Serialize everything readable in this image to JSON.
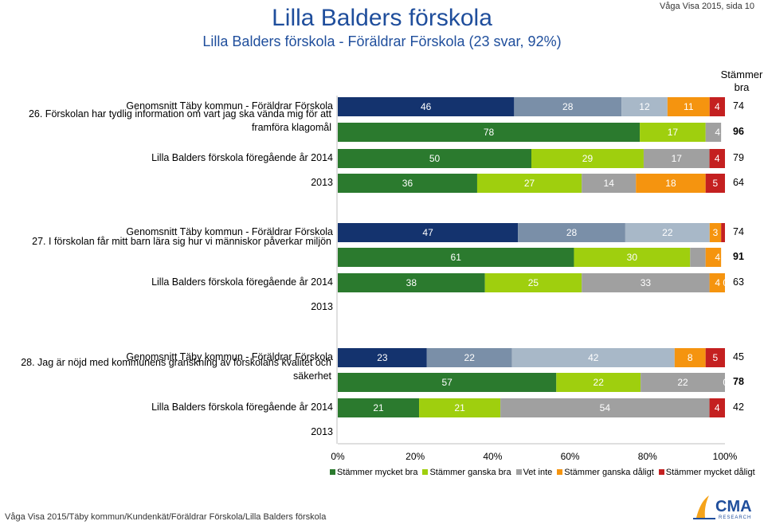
{
  "header": {
    "title": "Lilla Balders förskola",
    "subtitle": "Lilla Balders förskola - Föräldrar Förskola (23 svar, 92%)",
    "page_ref": "Våga Visa 2015, sida 10"
  },
  "column_header": "Stämmer bra",
  "footer": "Våga Visa 2015/Täby kommun/Kundenkät/Föräldrar Förskola/Lilla Balders förskola",
  "logo": {
    "text": "CMA",
    "subtext": "RESEARCH"
  },
  "chart_data": {
    "type": "stacked-bar-horizontal",
    "xlim": [
      0,
      100
    ],
    "x_ticks": [
      "0%",
      "20%",
      "40%",
      "60%",
      "80%",
      "100%"
    ],
    "legend": [
      {
        "name": "Stämmer mycket bra",
        "color": "#2b7a2e"
      },
      {
        "name": "Stämmer ganska bra",
        "color": "#9fcf0e"
      },
      {
        "name": "Vet inte",
        "color": "#a0a0a0"
      },
      {
        "name": "Stämmer ganska dåligt",
        "color": "#f5940f"
      },
      {
        "name": "Stämmer mycket dåligt",
        "color": "#c42020"
      }
    ],
    "colors": {
      "avg": [
        "#14336e",
        "#7a8fa8",
        "#a8b8c8",
        "#f5940f",
        "#c42020"
      ],
      "main": [
        "#2b7a2e",
        "#9fcf0e",
        "#a0a0a0",
        "#f5940f",
        "#c42020"
      ]
    },
    "questions": [
      {
        "label": "26. Förskolan har tydlig information om vart jag ska vända mig för att framföra klagomål",
        "rows": [
          {
            "label": "Genomsnitt Täby kommun - Föräldrar Förskola",
            "kind": "avg",
            "values": [
              46,
              28,
              12,
              11,
              4
            ],
            "total": "74",
            "bold": false
          },
          {
            "label": "",
            "kind": "main",
            "values": [
              78,
              17,
              4,
              0,
              0
            ],
            "total": "96",
            "bold": true,
            "tail": "4 0"
          },
          {
            "label": "Lilla Balders förskola föregående år 2014",
            "kind": "main",
            "values": [
              50,
              29,
              17,
              0,
              4
            ],
            "total": "79",
            "bold": false
          },
          {
            "label": "2013",
            "kind": "main",
            "values": [
              36,
              27,
              14,
              18,
              5
            ],
            "total": "64",
            "bold": false
          }
        ]
      },
      {
        "label": "27. I förskolan får mitt barn lära sig hur vi människor påverkar miljön",
        "rows": [
          {
            "label": "Genomsnitt Täby kommun - Föräldrar Förskola",
            "kind": "avg",
            "values": [
              47,
              28,
              22,
              3,
              1
            ],
            "total": "74",
            "bold": false
          },
          {
            "label": "",
            "kind": "main",
            "values": [
              61,
              30,
              4,
              4,
              0
            ],
            "total": "91",
            "bold": true,
            "tail": "4 0"
          },
          {
            "label": "Lilla Balders förskola föregående år 2014",
            "kind": "main",
            "values": [
              38,
              25,
              33,
              4,
              0
            ],
            "total": "63",
            "bold": false,
            "tail": "4 0"
          },
          {
            "label": "2013",
            "kind": "empty",
            "values": [],
            "total": "",
            "bold": false
          }
        ]
      },
      {
        "label": "28. Jag är nöjd med kommunens granskning av förskolans kvalitet och säkerhet",
        "rows": [
          {
            "label": "Genomsnitt Täby kommun - Föräldrar Förskola",
            "kind": "avg",
            "values": [
              23,
              22,
              42,
              8,
              5
            ],
            "total": "45",
            "bold": false
          },
          {
            "label": "",
            "kind": "main",
            "values": [
              57,
              22,
              22,
              0,
              0
            ],
            "total": "78",
            "bold": true,
            "tail": "0"
          },
          {
            "label": "Lilla Balders förskola föregående år 2014",
            "kind": "main",
            "values": [
              21,
              21,
              54,
              0,
              4
            ],
            "total": "42",
            "bold": false
          },
          {
            "label": "2013",
            "kind": "empty",
            "values": [],
            "total": "",
            "bold": false
          }
        ]
      }
    ]
  }
}
